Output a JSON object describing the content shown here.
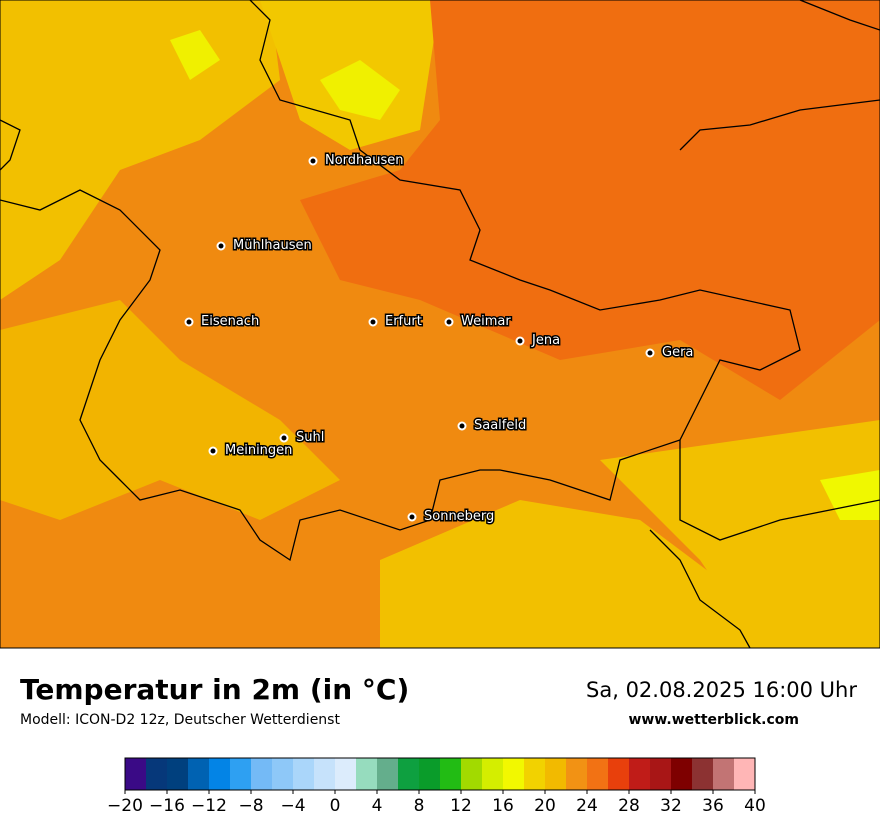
{
  "header": {
    "title": "Temperatur in 2m (in °C)",
    "subtitle": "Modell: ICON-D2 12z, Deutscher Wetterdienst",
    "datetime": "Sa, 02.08.2025 16:00 Uhr",
    "website": "www.wetterblick.com"
  },
  "cities": [
    "Nordhausen",
    "Mühlhausen",
    "Eisenach",
    "Erfurt",
    "Weimar",
    "Jena",
    "Gera",
    "Saalfeld",
    "Suhl",
    "Meiningen",
    "Sonneberg"
  ],
  "colorbar": {
    "ticks": [
      {
        "value": -20,
        "label": "−20"
      },
      {
        "value": -16,
        "label": "−16"
      },
      {
        "value": -12,
        "label": "−12"
      },
      {
        "value": -8,
        "label": "−8"
      },
      {
        "value": -4,
        "label": "−4"
      },
      0,
      4,
      8,
      12,
      16,
      20,
      24,
      28,
      32,
      36,
      40
    ],
    "colors": [
      "#3a0a86",
      "#06387a",
      "#00407e",
      "#0062b2",
      "#0384e6",
      "#2ea0f2",
      "#74baf6",
      "#8ec8f8",
      "#aad6fa",
      "#c6e2fb",
      "#dcecfc",
      "#96dcbe",
      "#64ae8c",
      "#0ea040",
      "#0a9c2a",
      "#22bc14",
      "#a2da00",
      "#d4ee00",
      "#f2f800",
      "#f2d200",
      "#f2ba00",
      "#f29214",
      "#f27214",
      "#e8400c",
      "#c01c18",
      "#a81616",
      "#7e0000",
      "#8c3232",
      "#c27474",
      "#ffb6b6",
      "#ffe0e2"
    ]
  }
}
